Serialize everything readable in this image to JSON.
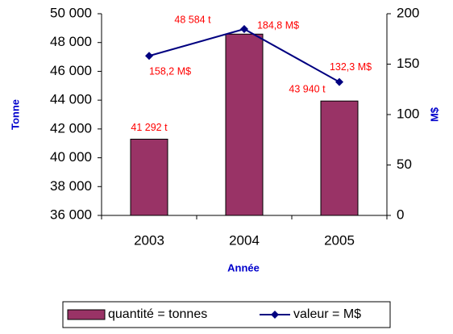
{
  "chart_data": {
    "type": "bar",
    "categories": [
      "2003",
      "2004",
      "2005"
    ],
    "series": [
      {
        "name": "quantité = tonnes",
        "type": "bar",
        "color": "#993366",
        "values": [
          41292,
          48584,
          43940
        ],
        "value_labels": [
          "41 292 t",
          "48 584 t",
          "43 940 t"
        ]
      },
      {
        "name": "valeur = M$",
        "type": "line",
        "axis": "y2",
        "color": "#000080",
        "values": [
          158.2,
          184.8,
          132.3
        ],
        "value_labels": [
          "158,2 M$",
          "184,8 M$",
          "132,3 M$"
        ]
      }
    ],
    "ylim": [
      36000,
      50000
    ],
    "yticks": [
      {
        "value": 36000,
        "label": "36 000"
      },
      {
        "value": 38000,
        "label": "38 000"
      },
      {
        "value": 40000,
        "label": "40 000"
      },
      {
        "value": 42000,
        "label": "42 000"
      },
      {
        "value": 44000,
        "label": "44 000"
      },
      {
        "value": 46000,
        "label": "46 000"
      },
      {
        "value": 48000,
        "label": "48 000"
      },
      {
        "value": 50000,
        "label": "50 000"
      }
    ],
    "y2lim": [
      0,
      200
    ],
    "y2ticks": [
      0,
      50,
      100,
      150,
      200
    ],
    "x_label": "Année",
    "y_label": "Tonne",
    "y2_label": "M$",
    "grid": false,
    "legend": "bottom"
  }
}
